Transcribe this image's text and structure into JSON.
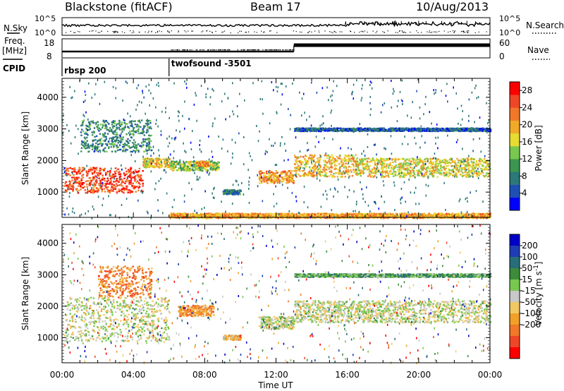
{
  "header": {
    "radar": "Blackstone (fitACF)",
    "beam": "Beam 17",
    "date": "10/Aug/2013"
  },
  "params_panel": {
    "nsky_label": "N.Sky",
    "nsearch_label": "N.Search",
    "freq_label_1": "Freq.",
    "freq_label_2": "[MHz]",
    "nave_label": "Nave",
    "cpid_label": "CPID",
    "noise_left_ticks": [
      "10^5",
      "10^0"
    ],
    "noise_right_ticks": [
      "10^5",
      "10^0"
    ],
    "freq_ticks": [
      "18",
      "8"
    ],
    "nave_ticks": [
      "60",
      "0"
    ],
    "cpid_segments": [
      {
        "label": "rbsp 200",
        "start_hour": 0
      },
      {
        "label": "twofsound -3501",
        "start_hour": 6
      }
    ]
  },
  "chart_data": [
    {
      "type": "heatmap",
      "name": "power_panel",
      "xlabel": "",
      "ylabel": "Slant Range [km]",
      "xlim": [
        0,
        24
      ],
      "ylim": [
        200,
        4600
      ],
      "yticks": [
        "1000",
        "2000",
        "3000",
        "4000"
      ],
      "colorbar": {
        "label": "Power [dB]",
        "ticks": [
          "4",
          "8",
          "12",
          "16",
          "20",
          "24",
          "28"
        ],
        "range": [
          0,
          30
        ],
        "colors": [
          "#0000ff",
          "#1e50b4",
          "#2d7878",
          "#3c9650",
          "#78c850",
          "#e6dc32",
          "#f0aa28",
          "#f07828",
          "#f04628",
          "#ff0000"
        ]
      },
      "echo_bands": [
        {
          "x_start": 0.1,
          "x_end": 4.5,
          "range_start": 1000,
          "range_end": 1800,
          "power": 25
        },
        {
          "x_start": 4.5,
          "x_end": 6.0,
          "range_start": 1800,
          "range_end": 2100,
          "power": 18
        },
        {
          "x_start": 6.0,
          "x_end": 8.8,
          "range_start": 1700,
          "range_end": 2000,
          "power": 14
        },
        {
          "x_start": 7.5,
          "x_end": 8.2,
          "range_start": 1850,
          "range_end": 2000,
          "power": 22
        },
        {
          "x_start": 1.0,
          "x_end": 5.0,
          "range_start": 2300,
          "range_end": 3300,
          "power": 9
        },
        {
          "x_start": 9.0,
          "x_end": 10.0,
          "range_start": 950,
          "range_end": 1100,
          "power": 8
        },
        {
          "x_start": 11.0,
          "x_end": 13.0,
          "range_start": 1300,
          "range_end": 1700,
          "power": 21
        },
        {
          "x_start": 13.0,
          "x_end": 16.5,
          "range_start": 1500,
          "range_end": 2200,
          "power": 19
        },
        {
          "x_start": 16.5,
          "x_end": 24.0,
          "range_start": 1500,
          "range_end": 2100,
          "power": 17
        },
        {
          "x_start": 13.0,
          "x_end": 24.0,
          "range_start": 2950,
          "range_end": 3050,
          "power": 6
        },
        {
          "x_start": 6.0,
          "x_end": 24.0,
          "range_start": 200,
          "range_end": 350,
          "power": 20
        }
      ]
    },
    {
      "type": "heatmap",
      "name": "velocity_panel",
      "xlabel": "Time UT",
      "ylabel": "Slant Range [km]",
      "xlim": [
        0,
        24
      ],
      "ylim": [
        200,
        4600
      ],
      "yticks": [
        "1000",
        "2000",
        "3000",
        "4000"
      ],
      "xticks": [
        "00:00",
        "04:00",
        "08:00",
        "12:00",
        "16:00",
        "20:00",
        "00:00"
      ],
      "colorbar": {
        "label": "Velocity [m s",
        "label_sup": "-1",
        "label_end": "]",
        "ticks": [
          "200",
          "100",
          "50",
          "15",
          "-15",
          "-50",
          "-100",
          "-200"
        ],
        "colors": [
          "#0000c8",
          "#1e3cb4",
          "#286e78",
          "#3c8c3c",
          "#78c850",
          "#c8c8c8",
          "#f0c864",
          "#f0a028",
          "#f07828",
          "#f04628",
          "#ff0000"
        ]
      },
      "echo_bands": [
        {
          "x_start": 0.1,
          "x_end": 6.0,
          "range_start": 900,
          "range_end": 2300,
          "velocity": 0
        },
        {
          "x_start": 2.0,
          "x_end": 5.0,
          "range_start": 2300,
          "range_end": 3300,
          "velocity": -100
        },
        {
          "x_start": 6.5,
          "x_end": 8.5,
          "range_start": 1700,
          "range_end": 2050,
          "velocity": -80
        },
        {
          "x_start": 9.0,
          "x_end": 10.0,
          "range_start": 950,
          "range_end": 1100,
          "velocity": -40
        },
        {
          "x_start": 11.0,
          "x_end": 13.0,
          "range_start": 1300,
          "range_end": 1700,
          "velocity": 5
        },
        {
          "x_start": 13.0,
          "x_end": 24.0,
          "range_start": 1500,
          "range_end": 2200,
          "velocity": 0
        },
        {
          "x_start": 13.0,
          "x_end": 24.0,
          "range_start": 2950,
          "range_end": 3050,
          "velocity": 60
        }
      ]
    }
  ]
}
